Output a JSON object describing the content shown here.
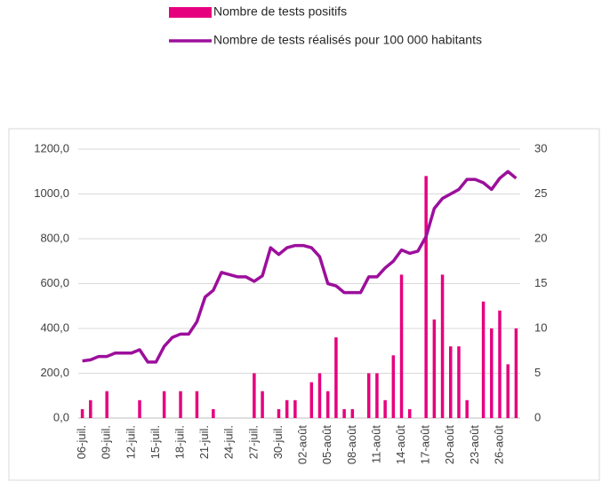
{
  "chart_data": {
    "type": "bar-line",
    "categories": [
      "06-juil.",
      null,
      null,
      "09-juil.",
      null,
      null,
      "12-juil.",
      null,
      null,
      "15-juil.",
      null,
      null,
      "18-juil.",
      null,
      null,
      "21-juil.",
      null,
      null,
      "24-juil.",
      null,
      null,
      "27-juil.",
      null,
      null,
      "30-juil.",
      null,
      null,
      "02-août",
      null,
      null,
      "05-août",
      null,
      null,
      "08-août",
      null,
      null,
      "11-août",
      null,
      null,
      "14-août",
      null,
      null,
      "17-août",
      null,
      null,
      "20-août",
      null,
      null,
      "23-août",
      null,
      null,
      "26-août",
      null,
      null
    ],
    "series": [
      {
        "name": "Nombre de tests positifs",
        "color": "#e6007e",
        "kind": "bar",
        "axis": "y2",
        "values": [
          1,
          2,
          0,
          3,
          0,
          0,
          0,
          2,
          0,
          0,
          3,
          0,
          3,
          0,
          3,
          0,
          1,
          0,
          0,
          0,
          0,
          5,
          3,
          0,
          1,
          2,
          2,
          0,
          4,
          5,
          3,
          9,
          1,
          1,
          0,
          5,
          5,
          2,
          7,
          16,
          1,
          0,
          27,
          11,
          16,
          8,
          8,
          2,
          0,
          13,
          10,
          12,
          6,
          10
        ]
      },
      {
        "name": "Nombre de tests réalisés pour 100 000 habitants",
        "color": "#9c0f9c",
        "kind": "line",
        "values": [
          255,
          260,
          275,
          275,
          290,
          290,
          290,
          305,
          250,
          250,
          320,
          360,
          375,
          375,
          430,
          540,
          570,
          650,
          640,
          630,
          630,
          610,
          635,
          760,
          730,
          760,
          770,
          770,
          760,
          720,
          600,
          590,
          560,
          560,
          560,
          630,
          630,
          670,
          700,
          750,
          735,
          745,
          810,
          935,
          980,
          1000,
          1020,
          1065,
          1065,
          1050,
          1020,
          1070,
          1100,
          1070
        ]
      }
    ],
    "ylim": [
      0,
      1200
    ],
    "yticks": [
      {
        "value": 0,
        "label": "0,0"
      },
      {
        "value": 200,
        "label": "200,0"
      },
      {
        "value": 400,
        "label": "400,0"
      },
      {
        "value": 600,
        "label": "600,0"
      },
      {
        "value": 800,
        "label": "800,0"
      },
      {
        "value": 1000,
        "label": "1000,0"
      },
      {
        "value": 1200,
        "label": "1200,0"
      }
    ],
    "y2lim": [
      0,
      30
    ],
    "y2ticks": [
      0,
      5,
      10,
      15,
      20,
      25,
      30
    ],
    "grid": true
  }
}
